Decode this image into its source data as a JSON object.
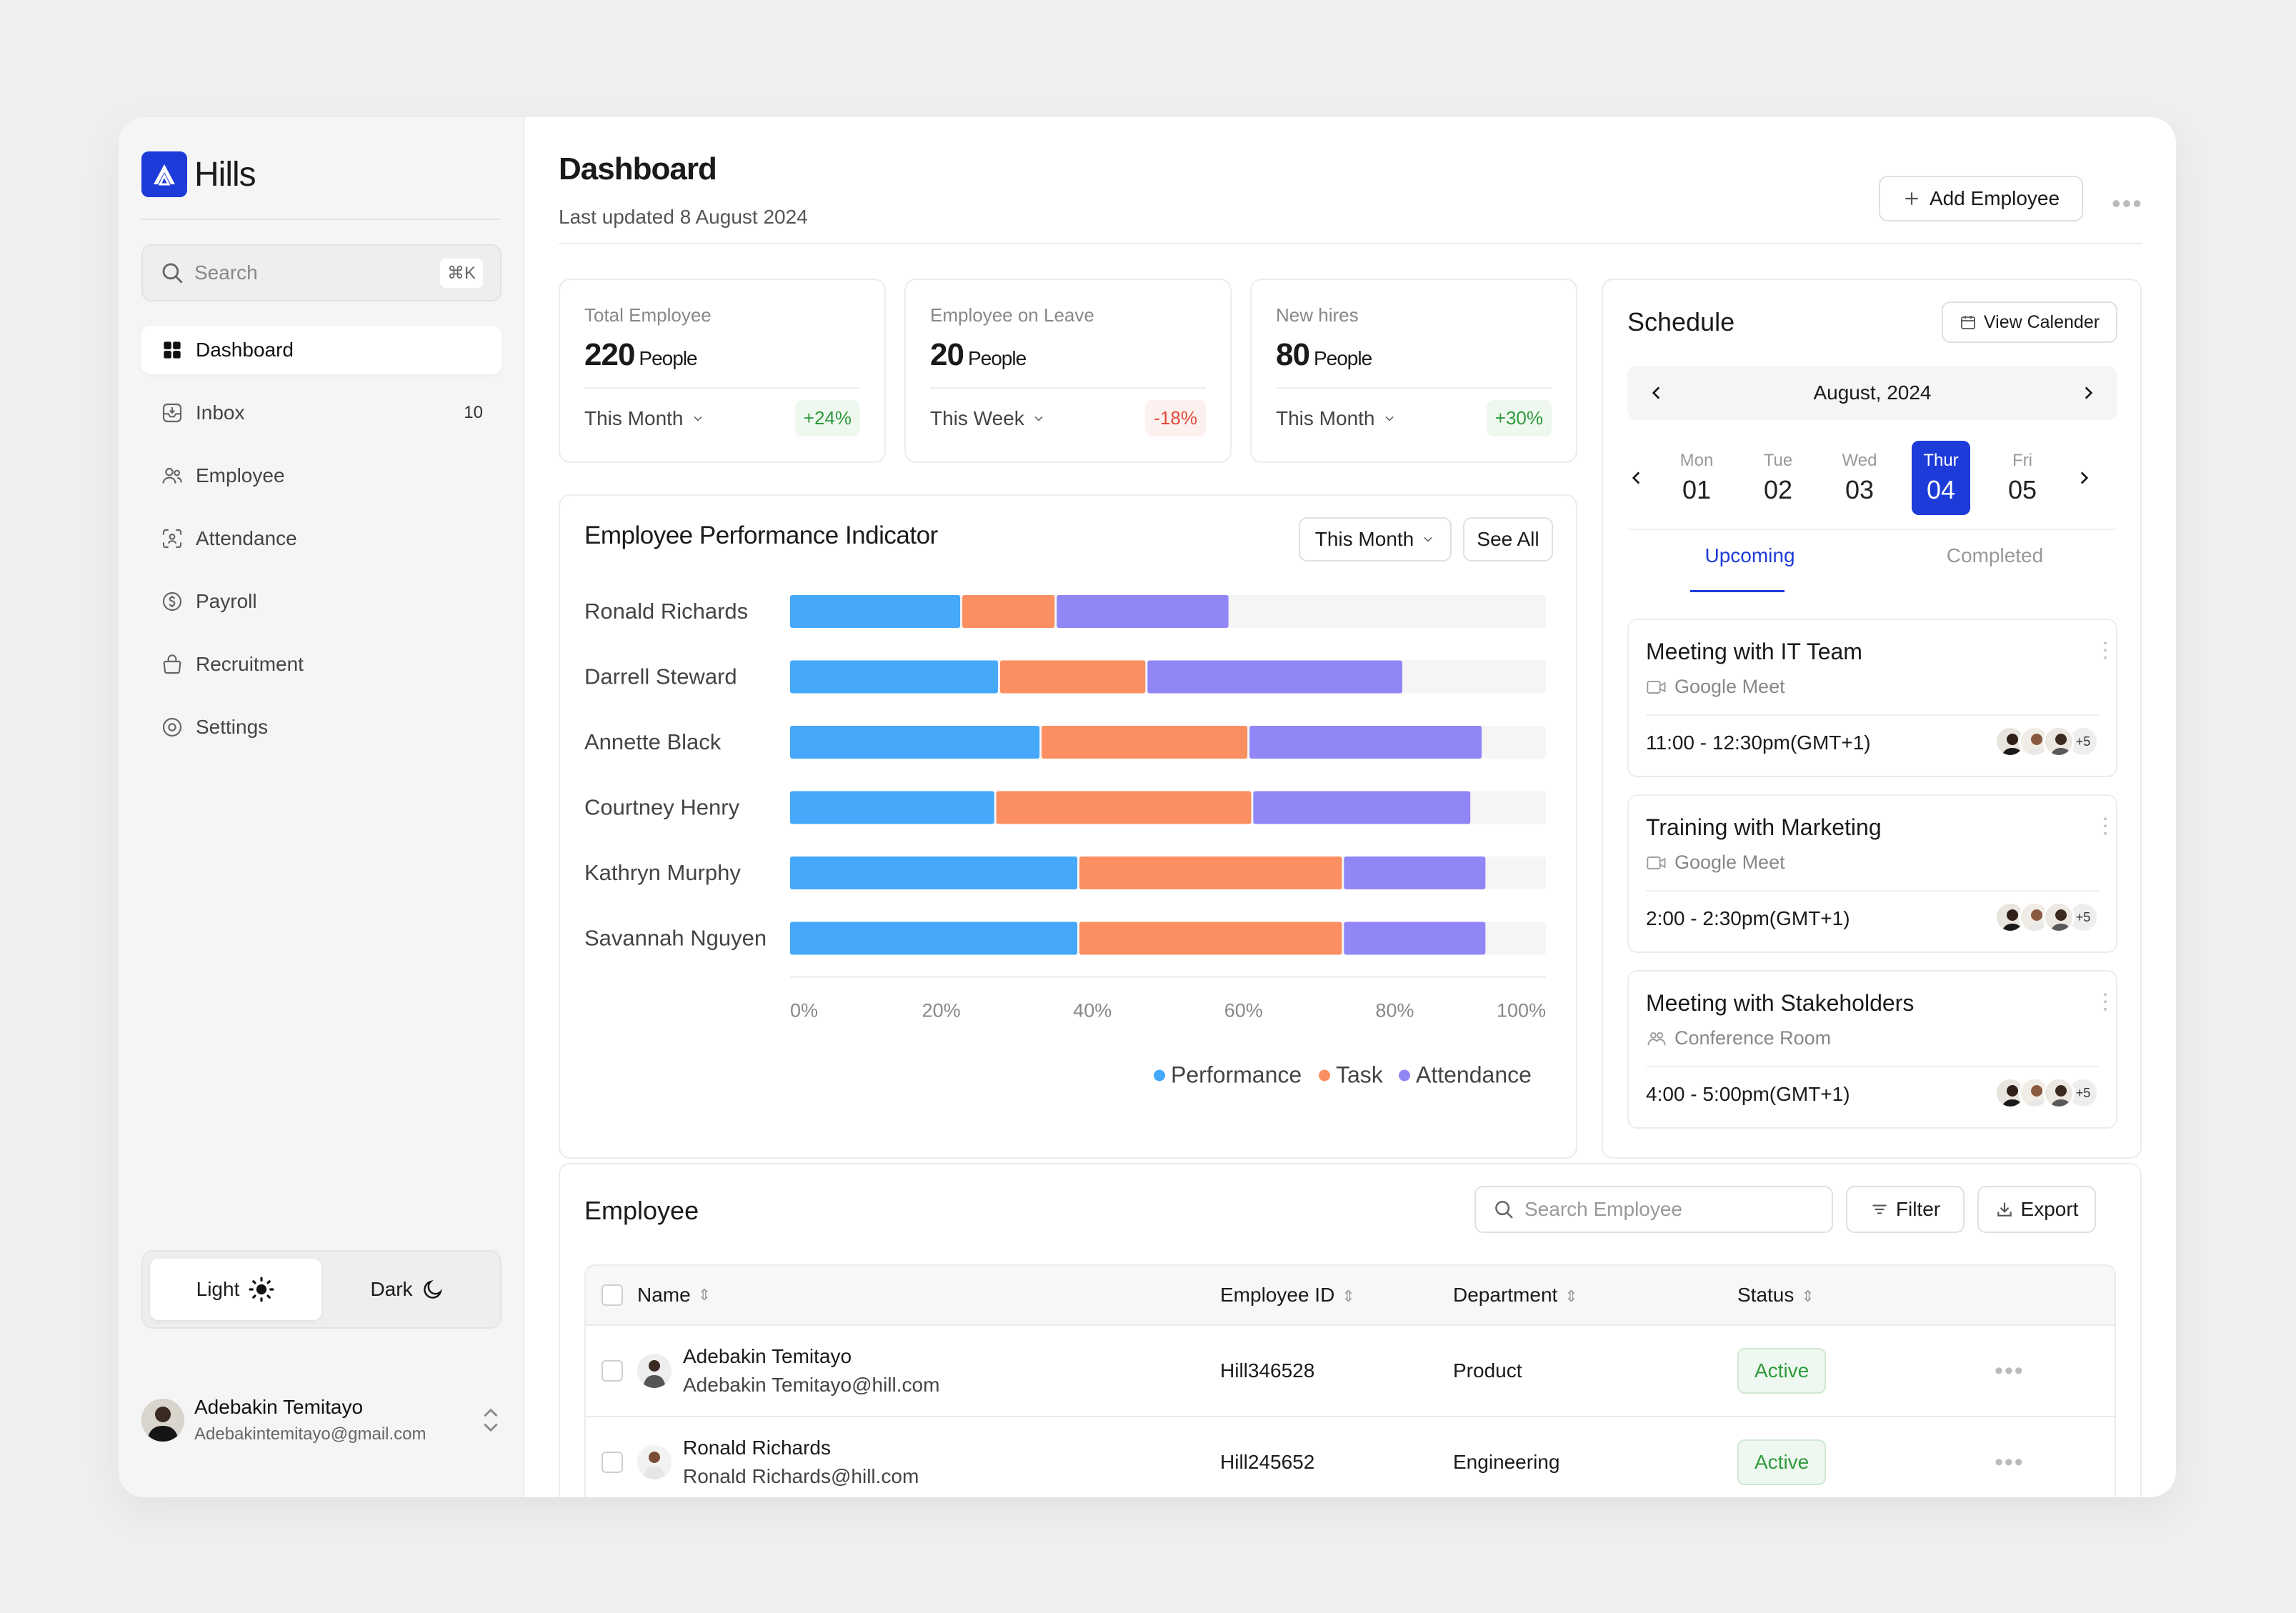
{
  "app": {
    "name": "Hills"
  },
  "sidebar": {
    "search_placeholder": "Search",
    "search_shortcut": "⌘K",
    "items": [
      {
        "label": "Dashboard",
        "icon": "grid-icon",
        "active": true
      },
      {
        "label": "Inbox",
        "icon": "inbox-icon",
        "count": "10"
      },
      {
        "label": "Employee",
        "icon": "users-icon"
      },
      {
        "label": "Attendance",
        "icon": "face-scan-icon"
      },
      {
        "label": "Payroll",
        "icon": "dollar-icon"
      },
      {
        "label": "Recruitment",
        "icon": "briefcase-icon"
      },
      {
        "label": "Settings",
        "icon": "gear-icon"
      }
    ],
    "theme": {
      "light": "Light",
      "dark": "Dark"
    },
    "user": {
      "name": "Adebakin Temitayo",
      "email": "Adebakintemitayo@gmail.com"
    }
  },
  "header": {
    "title": "Dashboard",
    "subtitle": "Last updated 8 August 2024",
    "add_button": "Add Employee"
  },
  "stats": [
    {
      "label": "Total Employee",
      "value": "220",
      "unit": "People",
      "period": "This Month",
      "change": "+24%",
      "trend": "up"
    },
    {
      "label": "Employee on Leave",
      "value": "20",
      "unit": "People",
      "period": "This Week",
      "change": "-18%",
      "trend": "down"
    },
    {
      "label": "New hires",
      "value": "80",
      "unit": "People",
      "period": "This Month",
      "change": "+30%",
      "trend": "up"
    }
  ],
  "performance": {
    "title": "Employee Performance Indicator",
    "period": "This Month",
    "see_all": "See All"
  },
  "chart_data": {
    "type": "bar",
    "orientation": "horizontal",
    "stacked": true,
    "title": "Employee Performance Indicator",
    "categories": [
      "Ronald Richards",
      "Darrell Steward",
      "Annette Black",
      "Courtney Henry",
      "Kathryn Murphy",
      "Savannah Nguyen"
    ],
    "series": [
      {
        "name": "Performance",
        "color": "#45a8fa",
        "values": [
          22.5,
          27.5,
          33,
          27,
          38,
          38
        ]
      },
      {
        "name": "Task",
        "color": "#fb8f61",
        "values": [
          12.5,
          19.5,
          27.5,
          34,
          35,
          35
        ]
      },
      {
        "name": "Attendance",
        "color": "#9186f6",
        "values": [
          23,
          34,
          31,
          29,
          19,
          19
        ]
      }
    ],
    "xlim": [
      0,
      100
    ],
    "x_ticks": [
      "0%",
      "20%",
      "40%",
      "60%",
      "80%",
      "100%"
    ],
    "legend": "bottom-right",
    "grid": false
  },
  "schedule": {
    "title": "Schedule",
    "view_calendar": "View Calender",
    "month": "August, 2024",
    "days": [
      {
        "name": "Mon",
        "date": "01"
      },
      {
        "name": "Tue",
        "date": "02"
      },
      {
        "name": "Wed",
        "date": "03"
      },
      {
        "name": "Thur",
        "date": "04",
        "selected": true
      },
      {
        "name": "Fri",
        "date": "05"
      }
    ],
    "tabs": {
      "upcoming": "Upcoming",
      "completed": "Completed"
    },
    "events": [
      {
        "title": "Meeting with IT Team",
        "location": "Google Meet",
        "loc_icon": "video-icon",
        "time": "11:00 - 12:30pm(GMT+1)",
        "more": "+5"
      },
      {
        "title": "Training with Marketing",
        "location": "Google Meet",
        "loc_icon": "video-icon",
        "time": "2:00 - 2:30pm(GMT+1)",
        "more": "+5"
      },
      {
        "title": "Meeting with Stakeholders",
        "location": "Conference Room",
        "loc_icon": "group-icon",
        "time": "4:00 - 5:00pm(GMT+1)",
        "more": "+5"
      }
    ]
  },
  "employees": {
    "title": "Employee",
    "search_placeholder": "Search Employee",
    "filter": "Filter",
    "export": "Export",
    "columns": {
      "name": "Name",
      "id": "Employee ID",
      "dept": "Department",
      "status": "Status"
    },
    "rows": [
      {
        "name": "Adebakin Temitayo",
        "email": "Adebakin Temitayo@hill.com",
        "id": "Hill346528",
        "dept": "Product",
        "status": "Active"
      },
      {
        "name": "Ronald Richards",
        "email": "Ronald Richards@hill.com",
        "id": "Hill245652",
        "dept": "Engineering",
        "status": "Active"
      }
    ]
  }
}
